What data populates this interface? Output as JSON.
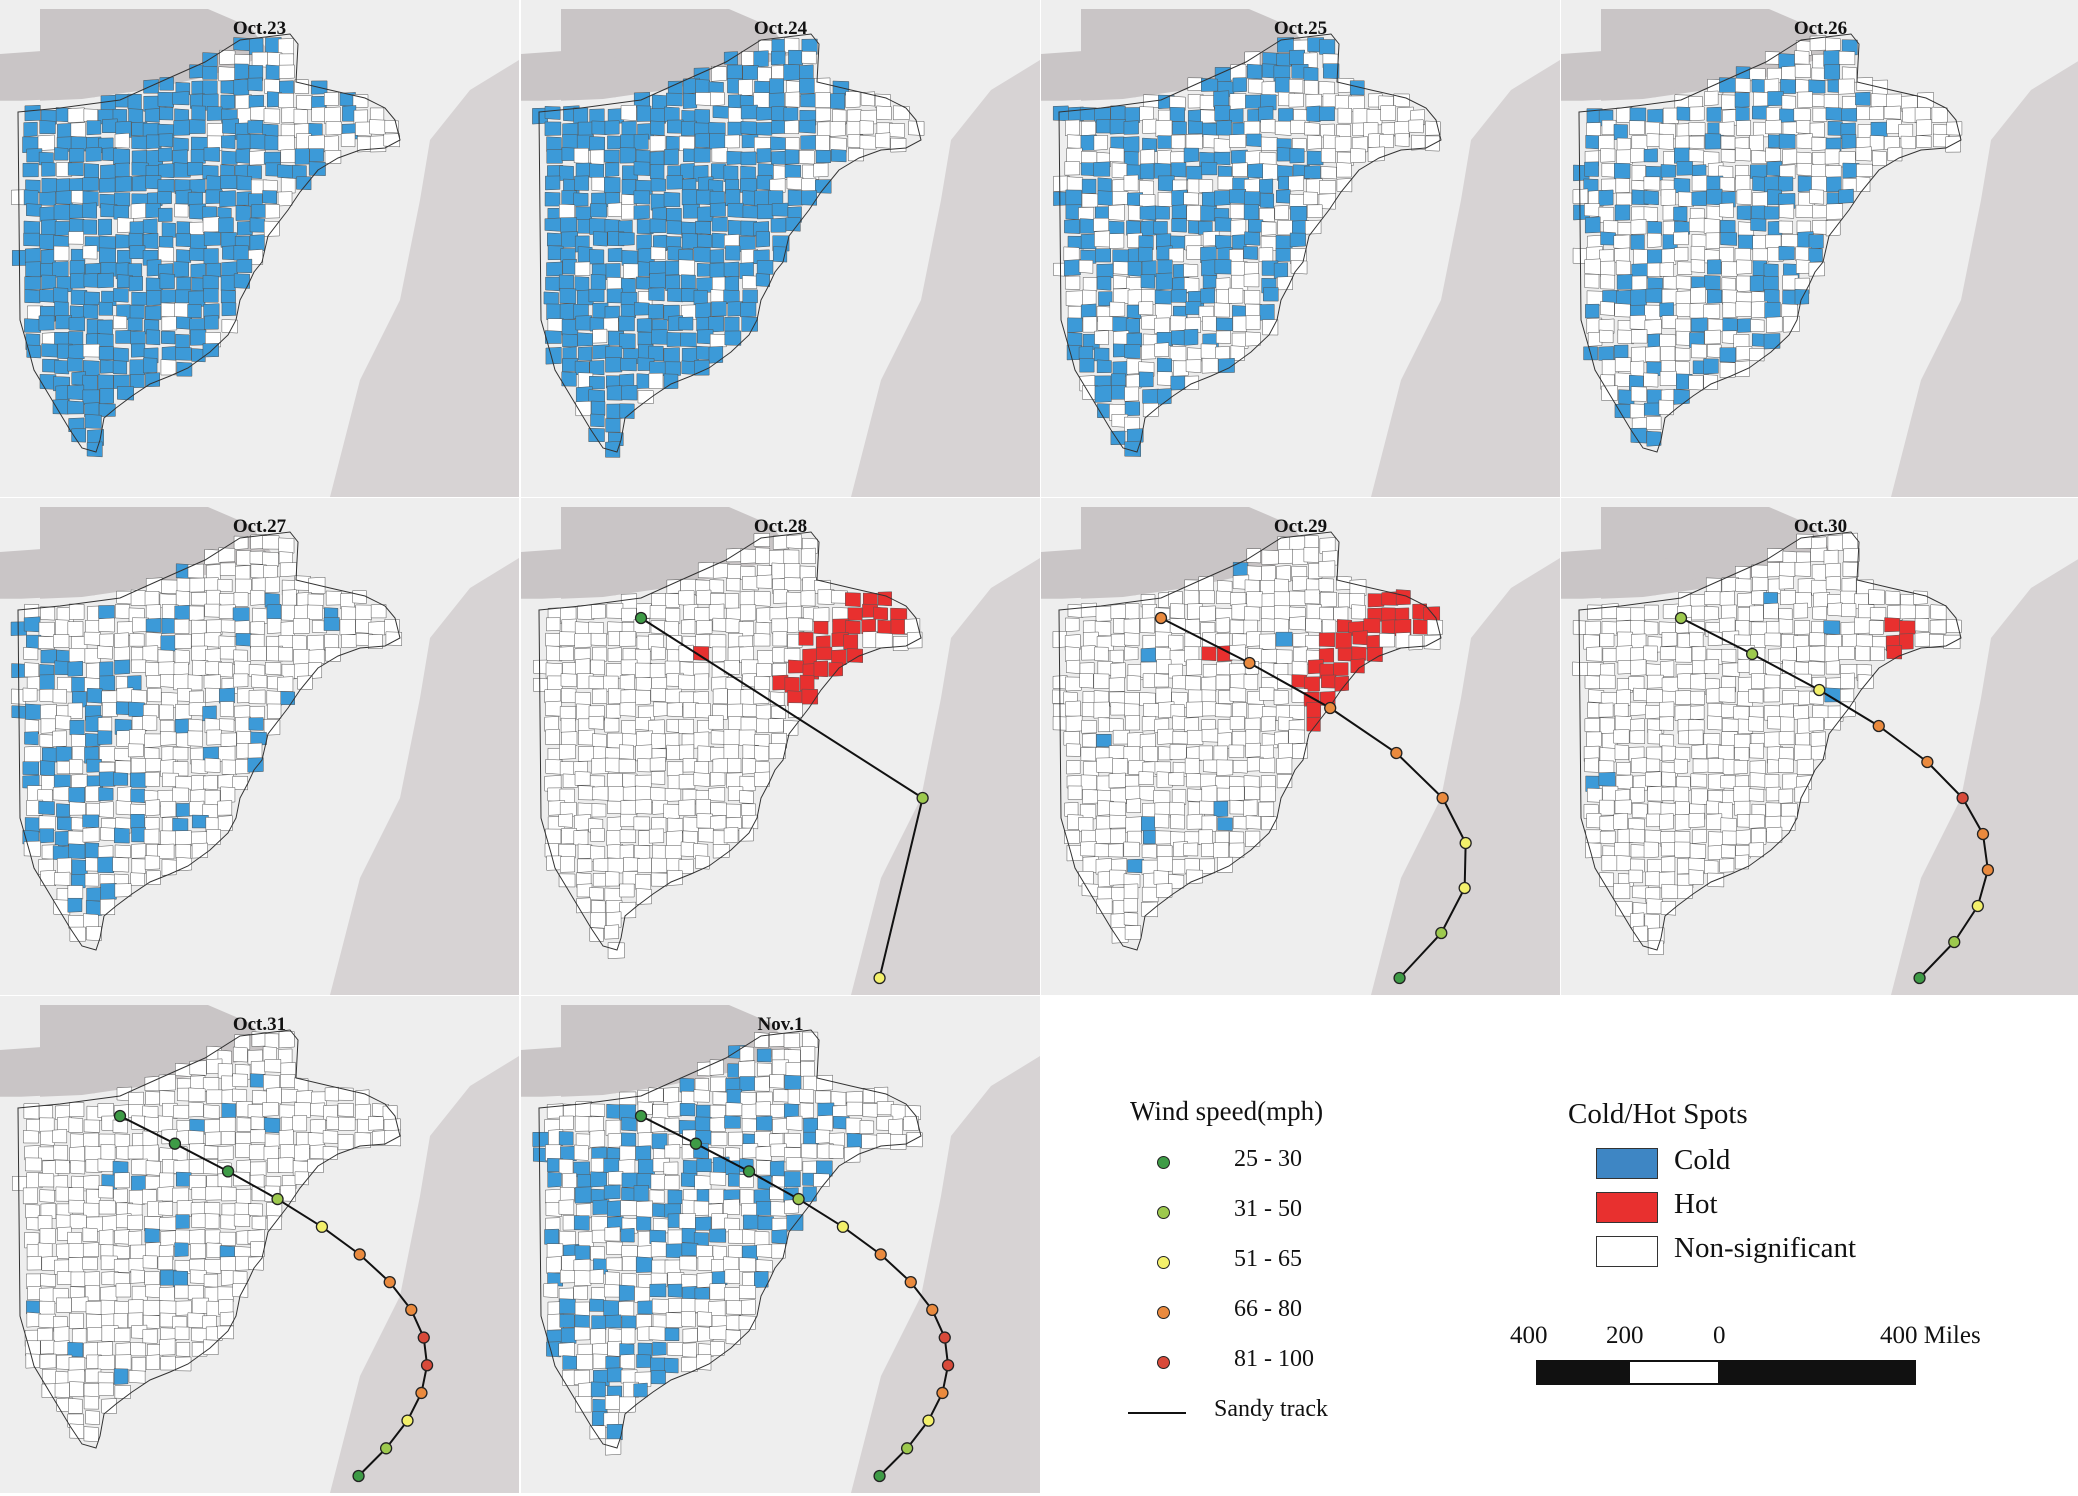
{
  "panels": [
    {
      "title": "Oct.23",
      "blue": 0.62,
      "blueIntensity": "heavy",
      "hot": [],
      "track": []
    },
    {
      "title": "Oct.24",
      "blue": 0.55,
      "blueIntensity": "heavy",
      "hot": [],
      "track": []
    },
    {
      "title": "Oct.25",
      "blue": 0.35,
      "blueIntensity": "medium",
      "hot": [],
      "track": []
    },
    {
      "title": "Oct.26",
      "blue": 0.22,
      "blueIntensity": "light",
      "hot": [],
      "track": []
    },
    {
      "title": "Oct.27",
      "blue": 0.12,
      "blueIntensity": "west",
      "hot": [],
      "track": []
    },
    {
      "title": "Oct.28",
      "blue": 0.0,
      "blueIntensity": "none",
      "hot": [
        "nj",
        "ny-coast",
        "ct",
        "ma-east",
        "pa-east",
        "pa-central-spot"
      ],
      "track": [
        [
          1,
          0.93
        ],
        [
          2,
          0.89
        ],
        [
          3,
          0.86
        ]
      ]
    },
    {
      "title": "Oct.29",
      "blue": 0.01,
      "blueIntensity": "none",
      "hot": [
        "nj",
        "ny-coast",
        "ct",
        "ma-east",
        "pa-east",
        "md",
        "va-coast",
        "pa-central-spot"
      ],
      "track": [
        [
          4,
          0.4
        ],
        [
          4,
          0.46
        ],
        [
          4,
          0.55
        ],
        [
          4,
          0.66
        ],
        [
          4,
          0.73
        ],
        [
          3,
          0.8
        ],
        [
          3,
          0.86
        ],
        [
          2,
          0.92
        ],
        [
          1,
          0.96
        ]
      ]
    },
    {
      "title": "Oct.30",
      "blue": 0.01,
      "blueIntensity": "none",
      "hot": [
        "nj-north",
        "ny-coast-small",
        "md-spot"
      ],
      "track": [
        [
          2,
          0.38
        ],
        [
          2,
          0.39
        ],
        [
          3,
          0.41
        ],
        [
          4,
          0.43
        ],
        [
          4,
          0.47
        ],
        [
          5,
          0.6
        ],
        [
          4,
          0.73
        ],
        [
          4,
          0.8
        ],
        [
          3,
          0.86
        ],
        [
          2,
          0.91
        ],
        [
          1,
          0.95
        ]
      ]
    },
    {
      "title": "Oct.31",
      "blue": 0.03,
      "blueIntensity": "none",
      "hot": [],
      "track": [
        [
          1,
          0.23
        ],
        [
          1,
          0.25
        ],
        [
          1,
          0.28
        ],
        [
          2,
          0.31
        ],
        [
          3,
          0.34
        ],
        [
          4,
          0.37
        ],
        [
          4,
          0.43
        ],
        [
          4,
          0.47
        ],
        [
          5,
          0.6
        ],
        [
          5,
          0.71
        ],
        [
          4,
          0.8
        ],
        [
          3,
          0.85
        ],
        [
          2,
          0.9
        ],
        [
          1,
          0.96
        ]
      ]
    },
    {
      "title": "Nov.1",
      "blue": 0.08,
      "blueIntensity": "light",
      "hot": [],
      "track": [
        [
          1,
          0.23
        ],
        [
          1,
          0.25
        ],
        [
          1,
          0.28
        ],
        [
          2,
          0.31
        ],
        [
          3,
          0.34
        ],
        [
          4,
          0.37
        ],
        [
          4,
          0.43
        ],
        [
          4,
          0.47
        ],
        [
          5,
          0.6
        ],
        [
          5,
          0.71
        ],
        [
          4,
          0.8
        ],
        [
          3,
          0.85
        ],
        [
          2,
          0.9
        ],
        [
          1,
          0.96
        ]
      ]
    }
  ],
  "colors": {
    "cold": "#3c9ad8",
    "hot": "#e8302f",
    "nonsig": "#ffffff",
    "ocean": "#d7d3d4",
    "land_outside": "#eeeeee",
    "lakes": "#c9c5c6",
    "border": "#555555",
    "wind": [
      "#3e9b46",
      "#9dc94e",
      "#f3f06b",
      "#ea8a3e",
      "#d84a3a"
    ]
  },
  "legend_wind": {
    "title": "Wind speed(mph)",
    "items": [
      {
        "label": "25 - 30",
        "color": "#3e9b46"
      },
      {
        "label": "31 - 50",
        "color": "#9dc94e"
      },
      {
        "label": "51 - 65",
        "color": "#f3f06b"
      },
      {
        "label": "66 - 80",
        "color": "#ea8a3e"
      },
      {
        "label": "81 - 100",
        "color": "#d84a3a"
      }
    ],
    "track_label": "Sandy track"
  },
  "legend_spots": {
    "title": "Cold/Hot Spots",
    "items": [
      {
        "label": "Cold",
        "color": "#3e86c4"
      },
      {
        "label": "Hot",
        "color": "#e8302f"
      },
      {
        "label": "Non-significant",
        "color": "#ffffff"
      }
    ]
  },
  "scale": {
    "labels": [
      "400",
      "200",
      "0",
      "400 Miles"
    ]
  }
}
